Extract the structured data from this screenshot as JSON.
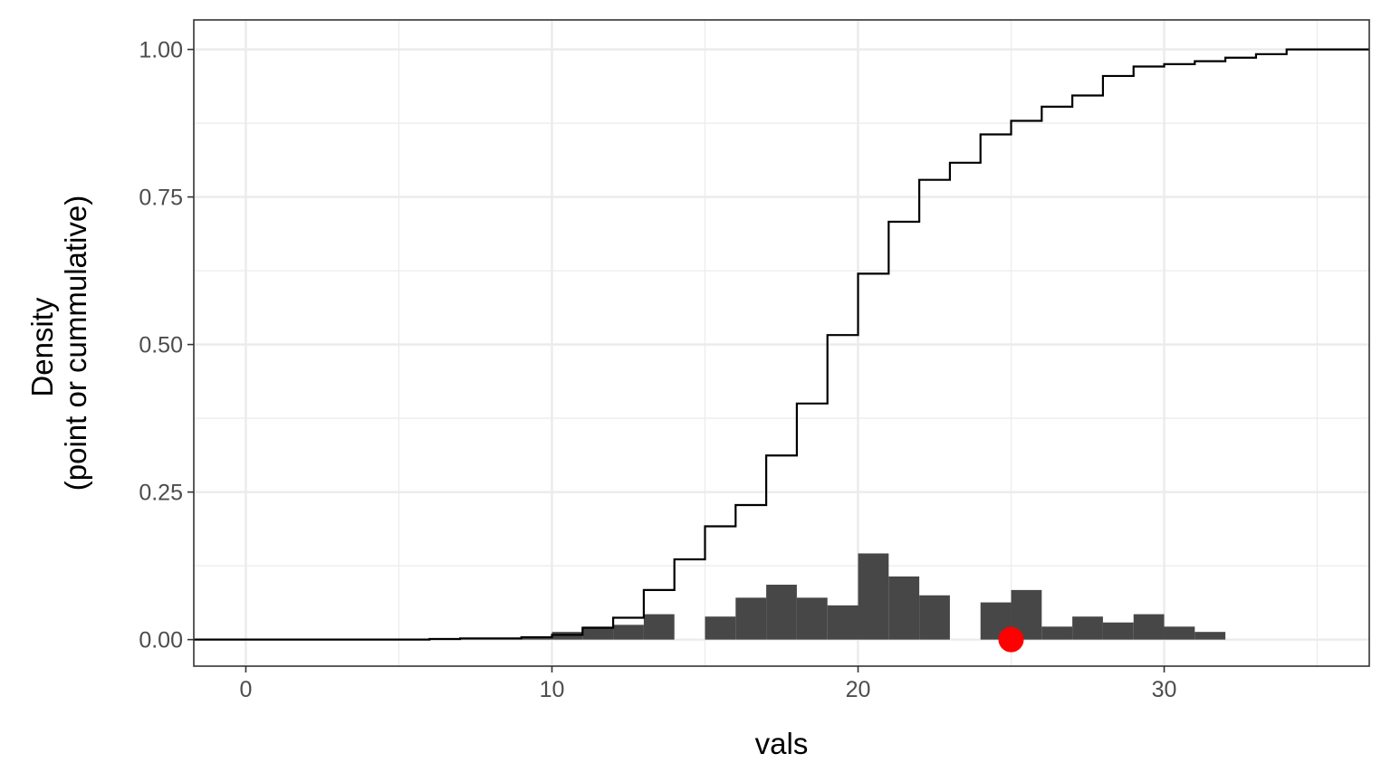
{
  "chart_data": {
    "type": "bar",
    "title": "",
    "xlabel": "vals",
    "ylabel": [
      "Density",
      "(point or cummulative)"
    ],
    "xlim": [
      -1.7,
      36.7
    ],
    "ylim": [
      -0.045,
      1.05
    ],
    "x_ticks": [
      0,
      10,
      20,
      30
    ],
    "x_tick_labels": [
      "0",
      "10",
      "20",
      "30"
    ],
    "y_ticks": [
      0,
      0.25,
      0.5,
      0.75,
      1.0
    ],
    "y_tick_labels": [
      "0.00",
      "0.25",
      "0.50",
      "0.75",
      "1.00"
    ],
    "grid": true,
    "legend": "none",
    "colors": {
      "bars": "#474747",
      "step_line": "#000000",
      "point": "#ff0000",
      "grid": "#ebebeb",
      "panel_border": "#333333"
    },
    "bars": {
      "name": "",
      "x": [
        6,
        7,
        8,
        9,
        10,
        11,
        12,
        13,
        14,
        15,
        16,
        17,
        18,
        19,
        20,
        21,
        22,
        23,
        24,
        25,
        26,
        27,
        28,
        29,
        30,
        31,
        32,
        33
      ],
      "values": [
        0.002,
        0.001,
        0.001,
        0.004,
        0.013,
        0.022,
        0.025,
        0.043,
        0.0,
        0.039,
        0.071,
        0.093,
        0.071,
        0.058,
        0.146,
        0.107,
        0.075,
        0.0,
        0.063,
        0.084,
        0.022,
        0.039,
        0.029,
        0.043,
        0.022,
        0.013,
        0.0,
        0.0
      ]
    },
    "cumulative_step": {
      "name": "",
      "x": [
        -1.7,
        6,
        7,
        8,
        9,
        10,
        11,
        12,
        13,
        14,
        15,
        16,
        17,
        18,
        19,
        20,
        21,
        22,
        23,
        24,
        25,
        26,
        27,
        28,
        29,
        30,
        31,
        32,
        33,
        34,
        35,
        36.7
      ],
      "values": [
        0.0,
        0.001,
        0.002,
        0.002,
        0.004,
        0.008,
        0.02,
        0.037,
        0.084,
        0.136,
        0.192,
        0.228,
        0.312,
        0.4,
        0.516,
        0.62,
        0.708,
        0.779,
        0.808,
        0.856,
        0.879,
        0.903,
        0.922,
        0.955,
        0.971,
        0.975,
        0.98,
        0.986,
        0.992,
        1.0,
        1.0,
        1.0
      ]
    },
    "highlight_point": {
      "x": 25,
      "y": 0.0
    }
  }
}
